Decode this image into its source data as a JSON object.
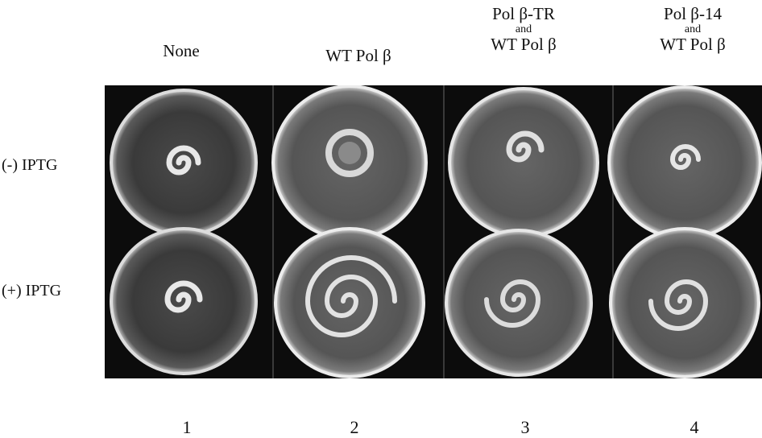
{
  "columns": [
    {
      "line1": "None",
      "line2": "",
      "line3": ""
    },
    {
      "line1": "WT Pol β",
      "line2": "",
      "line3": ""
    },
    {
      "line1": "Pol β-TR",
      "line2": "and",
      "line3": "WT Pol β"
    },
    {
      "line1": "Pol β-14",
      "line2": "and",
      "line3": "WT Pol β"
    }
  ],
  "rows": [
    "(-) IPTG",
    "(+) IPTG"
  ],
  "lanes": [
    "1",
    "2",
    "3",
    "4"
  ]
}
